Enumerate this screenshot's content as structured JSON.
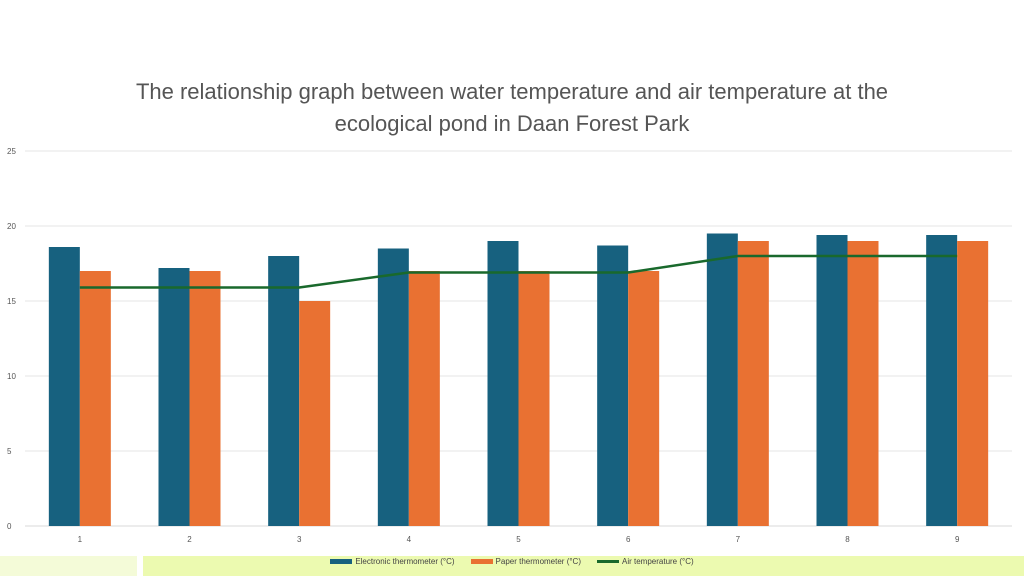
{
  "chart_data": {
    "type": "bar",
    "title": "The relationship graph between water temperature and air temperature at the ecological pond in Daan Forest Park",
    "categories": [
      "1",
      "2",
      "3",
      "4",
      "5",
      "6",
      "7",
      "8",
      "9"
    ],
    "series": [
      {
        "name": "Electronic thermometer (°C)",
        "type": "bar",
        "color": "#17617f",
        "values": [
          18.6,
          17.2,
          18.0,
          18.5,
          19.0,
          18.7,
          19.5,
          19.4,
          19.4
        ]
      },
      {
        "name": "Paper thermometer (°C)",
        "type": "bar",
        "color": "#e97132",
        "values": [
          17.0,
          17.0,
          15.0,
          17.0,
          17.0,
          17.0,
          19.0,
          19.0,
          19.0
        ]
      },
      {
        "name": "Air temperature (°C)",
        "type": "line",
        "color": "#19692c",
        "values": [
          15.9,
          15.9,
          15.9,
          16.9,
          16.9,
          16.9,
          18.0,
          18.0,
          18.0
        ]
      }
    ],
    "yticks": [
      "0",
      "5",
      "10",
      "15",
      "20",
      "25"
    ],
    "ylim": [
      0,
      25
    ],
    "grid": true,
    "legend": "bottom"
  }
}
